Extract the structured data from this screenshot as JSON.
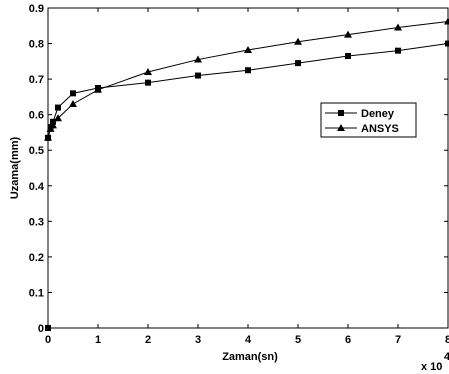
{
  "chart_data": {
    "type": "line",
    "xlabel": "Zaman(sn)",
    "ylabel": "Uzama(mm)",
    "x_exponent_label": "x 10",
    "x_exponent_power": "4",
    "xlim": [
      0,
      8
    ],
    "ylim": [
      0,
      0.9
    ],
    "x_ticks": [
      "0",
      "1",
      "2",
      "3",
      "4",
      "5",
      "6",
      "7",
      "8"
    ],
    "y_ticks": [
      "0",
      "0.1",
      "0.2",
      "0.3",
      "0.4",
      "0.5",
      "0.6",
      "0.7",
      "0.8",
      "0.9"
    ],
    "grid": false,
    "legend_position": "right",
    "series": [
      {
        "name": "Deney",
        "marker": "square",
        "color": "#000000",
        "x": [
          0,
          0.05,
          0.1,
          0.2,
          0.5,
          1,
          2,
          3,
          4,
          5,
          6,
          7,
          8
        ],
        "y": [
          0.535,
          0.565,
          0.58,
          0.62,
          0.66,
          0.675,
          0.69,
          0.71,
          0.725,
          0.745,
          0.765,
          0.78,
          0.8
        ]
      },
      {
        "name": "ANSYS",
        "marker": "triangle",
        "color": "#000000",
        "x": [
          0,
          0.05,
          0.1,
          0.2,
          0.5,
          1,
          2,
          3,
          4,
          5,
          6,
          7,
          8
        ],
        "y": [
          0.535,
          0.56,
          0.57,
          0.59,
          0.63,
          0.67,
          0.72,
          0.755,
          0.782,
          0.805,
          0.825,
          0.845,
          0.862
        ]
      }
    ],
    "extra_points": [
      {
        "x": 0,
        "y": 0,
        "marker": "square"
      }
    ]
  }
}
